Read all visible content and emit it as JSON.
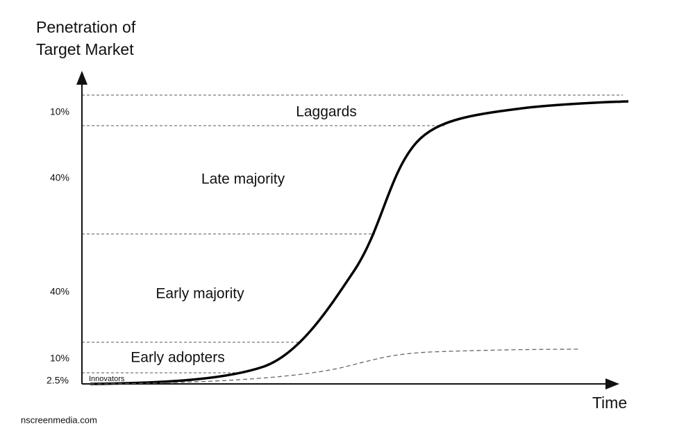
{
  "axis": {
    "y_label_lines": [
      "Penetration of",
      "Target Market"
    ],
    "x_label": "Time"
  },
  "segments": [
    {
      "label": "Laggards",
      "share": "10%"
    },
    {
      "label": "Late majority",
      "share": "40%"
    },
    {
      "label": "Early majority",
      "share": "40%"
    },
    {
      "label": "Early adopters",
      "share": "10%"
    },
    {
      "label": "Innovators",
      "share": "2.5%"
    }
  ],
  "source": "nscreenmedia.com"
}
